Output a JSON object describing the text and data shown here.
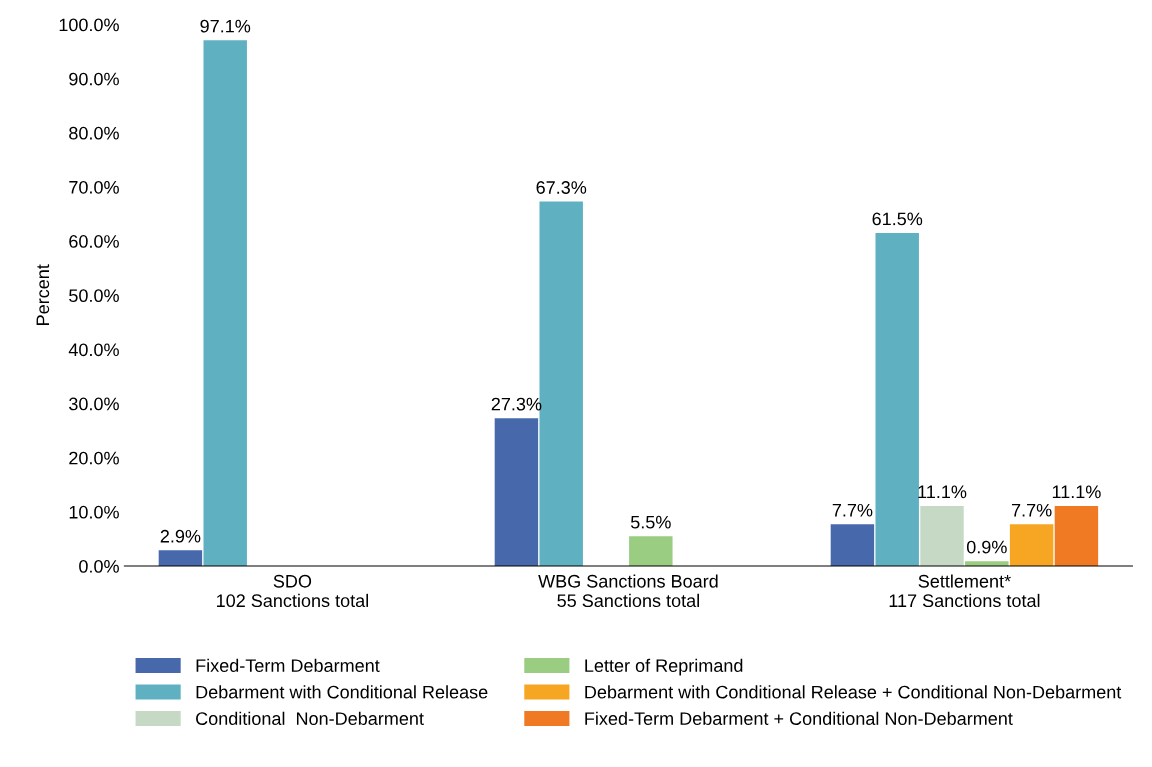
{
  "chart_data": {
    "type": "bar",
    "ylabel": "Percent",
    "categories": [
      "SDO\n102 Sanctions total",
      "WBG Sanctions Board\n55 Sanctions total",
      "Settlement*\n117 Sanctions total"
    ],
    "series": [
      {
        "name": "Fixed-Term Debarment",
        "color": "#4769ab",
        "values": [
          2.9,
          27.3,
          7.7
        ],
        "value_labels": [
          "2.9%",
          "27.3%",
          "7.7%"
        ]
      },
      {
        "name": "Debarment with Conditional Release",
        "color": "#5fb1c2",
        "values": [
          97.1,
          67.3,
          61.5
        ],
        "value_labels": [
          "97.1%",
          "67.3%",
          "61.5%"
        ]
      },
      {
        "name": "Conditional  Non-Debarment",
        "color": "#c5d9c5",
        "values": [
          null,
          null,
          11.1
        ],
        "value_labels": [
          null,
          null,
          "11.1%"
        ]
      },
      {
        "name": "Letter of Reprimand",
        "color": "#9acc82",
        "values": [
          null,
          5.5,
          0.9
        ],
        "value_labels": [
          null,
          "5.5%",
          "0.9%"
        ]
      },
      {
        "name": "Debarment with Conditional Release + Conditional Non-Debarment",
        "color": "#f6a623",
        "values": [
          null,
          null,
          7.7
        ],
        "value_labels": [
          null,
          null,
          "7.7%"
        ]
      },
      {
        "name": "Fixed-Term Debarment + Conditional Non-Debarment",
        "color": "#f07a23",
        "values": [
          null,
          null,
          11.1
        ],
        "value_labels": [
          null,
          null,
          "11.1%"
        ]
      }
    ],
    "ylim": [
      0,
      100
    ],
    "yticks": [
      {
        "value": 0,
        "label": "0.0%"
      },
      {
        "value": 10,
        "label": "10.0%"
      },
      {
        "value": 20,
        "label": "20.0%"
      },
      {
        "value": 30,
        "label": "30.0%"
      },
      {
        "value": 40,
        "label": "40.0%"
      },
      {
        "value": 50,
        "label": "50.0%"
      },
      {
        "value": 60,
        "label": "60.0%"
      },
      {
        "value": 70,
        "label": "70.0%"
      },
      {
        "value": 80,
        "label": "80.0%"
      },
      {
        "value": 90,
        "label": "90.0%"
      },
      {
        "value": 100,
        "label": "100.0%"
      }
    ],
    "grid": false,
    "legend": "bottom"
  }
}
